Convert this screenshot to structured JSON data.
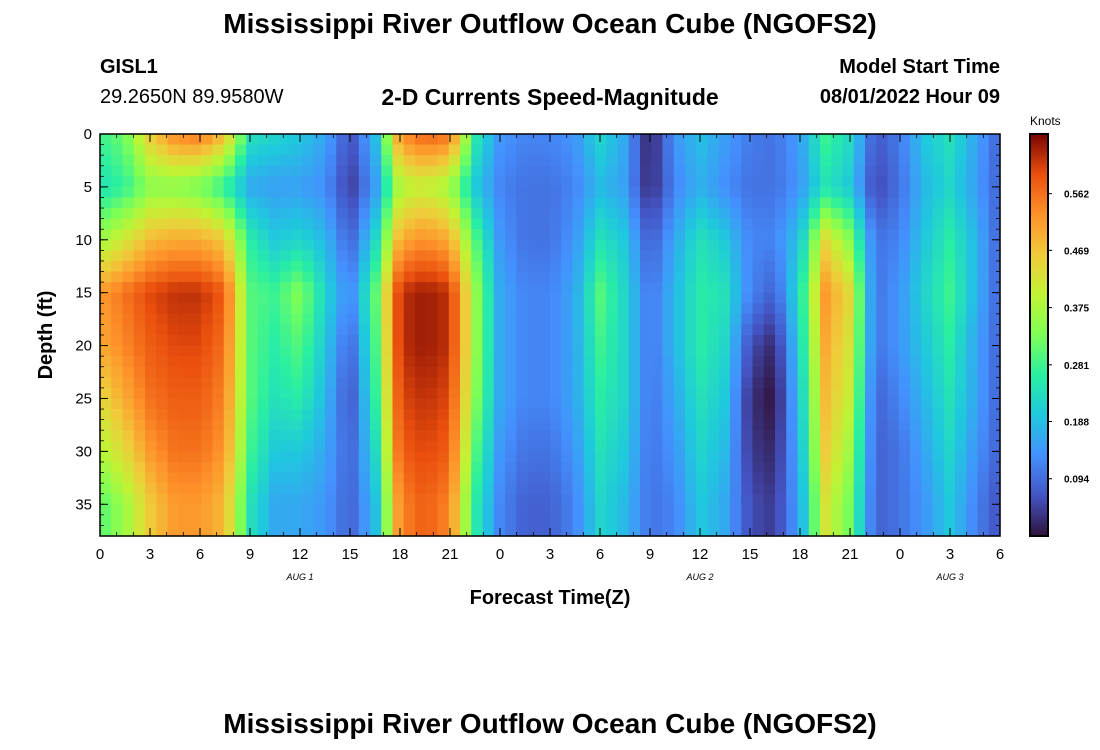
{
  "header": {
    "title": "Mississippi River Outflow Ocean Cube (NGOFS2)",
    "station": "GISL1",
    "coords": "29.2650N  89.9580W",
    "subtitle": "2-D Currents Speed-Magnitude",
    "model_start_label": "Model Start Time",
    "model_start_time": "08/01/2022 Hour 09"
  },
  "footer": {
    "title": "Mississippi River Outflow Ocean Cube (NGOFS2)"
  },
  "chart_data": {
    "type": "heatmap",
    "title": "2-D Currents Speed-Magnitude",
    "xlabel": "Forecast Time(Z)",
    "ylabel": "Depth (ft)",
    "x_tick_labels": [
      "0",
      "3",
      "6",
      "9",
      "12",
      "15",
      "18",
      "21",
      "0",
      "3",
      "6",
      "9",
      "12",
      "15",
      "18",
      "21",
      "0",
      "3",
      "6"
    ],
    "x_range_hours": [
      0,
      54
    ],
    "date_labels": [
      {
        "label": "AUG 1",
        "hour": 12
      },
      {
        "label": "AUG 2",
        "hour": 36
      },
      {
        "label": "AUG 3",
        "hour": 51
      }
    ],
    "y_ticks": [
      0,
      5,
      10,
      15,
      20,
      25,
      30,
      35
    ],
    "y_range": [
      0,
      38
    ],
    "y_inverted": true,
    "colorbar": {
      "unit": "Knots",
      "ticks": [
        0.094,
        0.188,
        0.281,
        0.375,
        0.469,
        0.562
      ],
      "range": [
        0,
        0.66
      ],
      "colormap": "turbo"
    },
    "x_hours": [
      0,
      1.5,
      3,
      4.5,
      6,
      7.5,
      9,
      10.5,
      12,
      13.5,
      15,
      16.5,
      18,
      19.5,
      21,
      22.5,
      24,
      25.5,
      27,
      28.5,
      30,
      31.5,
      33,
      34.5,
      36,
      37.5,
      39,
      40.5,
      42,
      43.5,
      45,
      46.5,
      48,
      49.5,
      51,
      52.5,
      54
    ],
    "depths_ft": [
      0,
      5,
      10,
      15,
      20,
      25,
      30,
      35
    ],
    "values_knots": [
      [
        0.28,
        0.32,
        0.46,
        0.54,
        0.56,
        0.48,
        0.24,
        0.22,
        0.2,
        0.16,
        0.06,
        0.18,
        0.53,
        0.58,
        0.56,
        0.26,
        0.14,
        0.12,
        0.12,
        0.14,
        0.22,
        0.16,
        0.01,
        0.14,
        0.19,
        0.15,
        0.11,
        0.1,
        0.15,
        0.28,
        0.23,
        0.07,
        0.11,
        0.2,
        0.24,
        0.16,
        0.08
      ],
      [
        0.24,
        0.27,
        0.34,
        0.34,
        0.32,
        0.26,
        0.16,
        0.15,
        0.15,
        0.13,
        0.04,
        0.14,
        0.38,
        0.4,
        0.36,
        0.2,
        0.12,
        0.1,
        0.1,
        0.12,
        0.18,
        0.15,
        0.02,
        0.12,
        0.17,
        0.13,
        0.1,
        0.1,
        0.14,
        0.24,
        0.2,
        0.05,
        0.1,
        0.18,
        0.22,
        0.15,
        0.08
      ],
      [
        0.36,
        0.42,
        0.48,
        0.5,
        0.5,
        0.46,
        0.26,
        0.2,
        0.22,
        0.18,
        0.08,
        0.22,
        0.5,
        0.53,
        0.5,
        0.3,
        0.14,
        0.1,
        0.1,
        0.14,
        0.24,
        0.2,
        0.07,
        0.16,
        0.24,
        0.2,
        0.12,
        0.12,
        0.2,
        0.44,
        0.34,
        0.1,
        0.12,
        0.2,
        0.26,
        0.18,
        0.08
      ],
      [
        0.52,
        0.56,
        0.6,
        0.62,
        0.62,
        0.58,
        0.3,
        0.28,
        0.34,
        0.22,
        0.12,
        0.3,
        0.62,
        0.64,
        0.62,
        0.36,
        0.16,
        0.12,
        0.12,
        0.16,
        0.3,
        0.22,
        0.1,
        0.18,
        0.26,
        0.24,
        0.12,
        0.08,
        0.24,
        0.52,
        0.44,
        0.1,
        0.14,
        0.22,
        0.28,
        0.18,
        0.08
      ],
      [
        0.5,
        0.54,
        0.58,
        0.6,
        0.6,
        0.56,
        0.3,
        0.26,
        0.3,
        0.2,
        0.08,
        0.28,
        0.62,
        0.64,
        0.62,
        0.36,
        0.16,
        0.12,
        0.12,
        0.16,
        0.28,
        0.22,
        0.1,
        0.18,
        0.26,
        0.22,
        0.06,
        0.02,
        0.22,
        0.5,
        0.42,
        0.1,
        0.14,
        0.2,
        0.26,
        0.16,
        0.08
      ],
      [
        0.44,
        0.5,
        0.56,
        0.58,
        0.58,
        0.54,
        0.3,
        0.24,
        0.26,
        0.18,
        0.06,
        0.26,
        0.6,
        0.62,
        0.6,
        0.34,
        0.16,
        0.12,
        0.12,
        0.16,
        0.26,
        0.22,
        0.1,
        0.16,
        0.24,
        0.2,
        0.03,
        0.0,
        0.2,
        0.48,
        0.4,
        0.08,
        0.12,
        0.18,
        0.24,
        0.16,
        0.08
      ],
      [
        0.38,
        0.44,
        0.52,
        0.56,
        0.56,
        0.52,
        0.28,
        0.2,
        0.2,
        0.16,
        0.08,
        0.22,
        0.58,
        0.6,
        0.58,
        0.3,
        0.14,
        0.1,
        0.1,
        0.14,
        0.24,
        0.2,
        0.1,
        0.14,
        0.22,
        0.18,
        0.04,
        0.02,
        0.18,
        0.46,
        0.36,
        0.08,
        0.1,
        0.16,
        0.22,
        0.14,
        0.08
      ],
      [
        0.3,
        0.36,
        0.46,
        0.52,
        0.52,
        0.48,
        0.24,
        0.16,
        0.16,
        0.14,
        0.08,
        0.18,
        0.54,
        0.58,
        0.54,
        0.26,
        0.12,
        0.08,
        0.08,
        0.12,
        0.22,
        0.18,
        0.1,
        0.12,
        0.2,
        0.16,
        0.06,
        0.04,
        0.16,
        0.42,
        0.32,
        0.08,
        0.1,
        0.14,
        0.2,
        0.12,
        0.06
      ]
    ]
  }
}
